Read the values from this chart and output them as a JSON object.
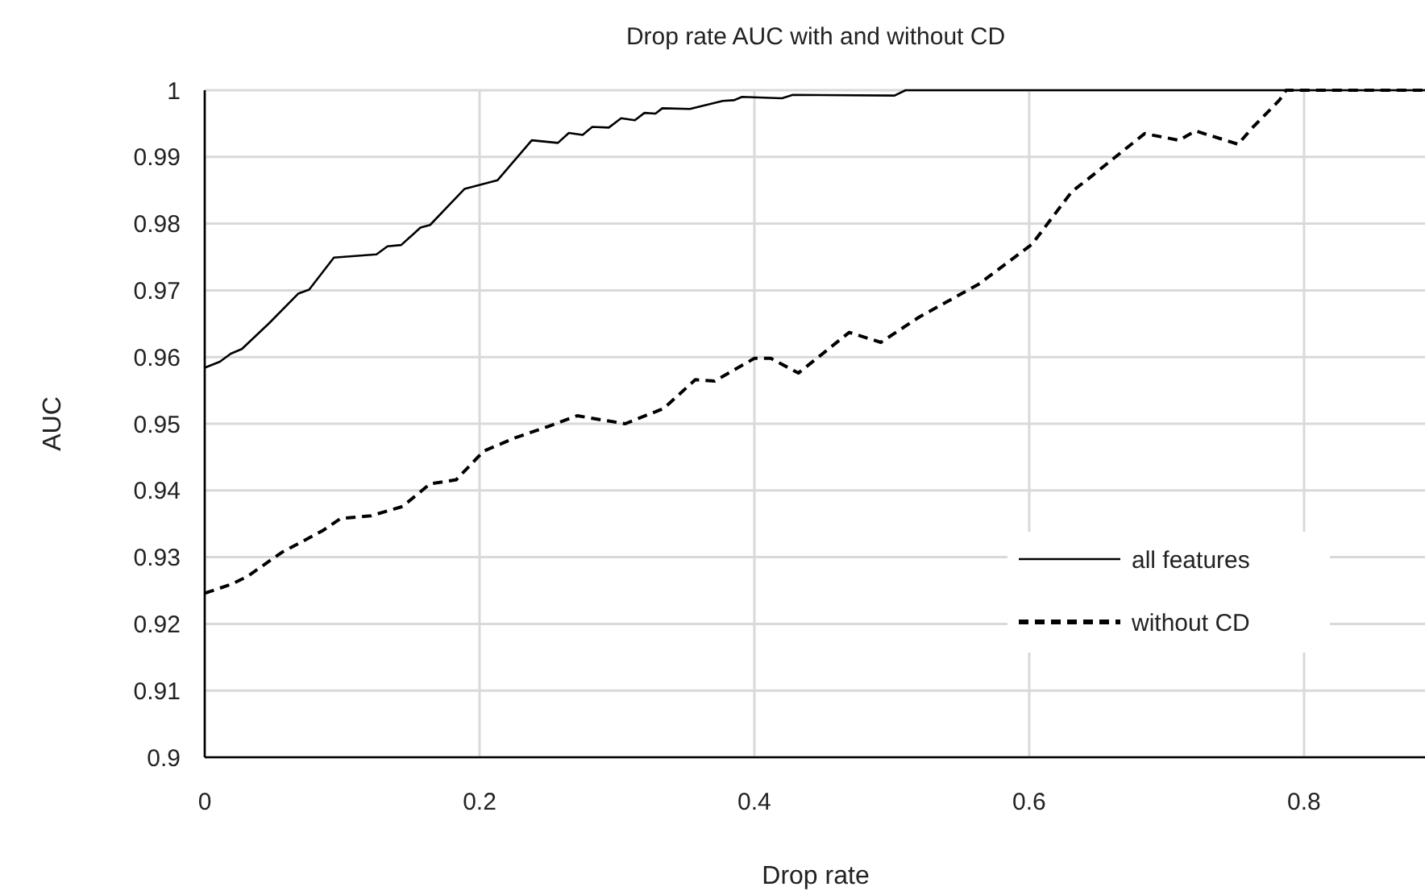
{
  "chart_data": {
    "type": "line",
    "title": "Drop rate AUC with and without CD",
    "xlabel": "Drop rate",
    "ylabel": "AUC",
    "xlim": [
      0,
      0.888
    ],
    "xticks": [
      0,
      0.2,
      0.4,
      0.6,
      0.8
    ],
    "ylim": [
      0.9,
      1
    ],
    "yticks": [
      0.9,
      0.91,
      0.92,
      0.93,
      0.94,
      0.95,
      0.96,
      0.97,
      0.98,
      0.99,
      1
    ],
    "grid": true,
    "legend": "bottom right",
    "series": [
      {
        "name": "all features",
        "color": "#000000",
        "line_style": "solid",
        "x": [
          0,
          0.011,
          0.019,
          0.027,
          0.047,
          0.068,
          0.076,
          0.094,
          0.125,
          0.133,
          0.143,
          0.157,
          0.164,
          0.189,
          0.213,
          0.238,
          0.257,
          0.265,
          0.275,
          0.282,
          0.294,
          0.303,
          0.313,
          0.32,
          0.328,
          0.333,
          0.353,
          0.377,
          0.385,
          0.391,
          0.42,
          0.428,
          0.502,
          0.51,
          0.888
        ],
        "values": [
          0.9584,
          0.9593,
          0.9605,
          0.9612,
          0.9651,
          0.9695,
          0.9701,
          0.9749,
          0.9754,
          0.9766,
          0.9768,
          0.9794,
          0.9798,
          0.9852,
          0.9865,
          0.9925,
          0.9921,
          0.9936,
          0.9933,
          0.9945,
          0.9944,
          0.9958,
          0.9955,
          0.9966,
          0.9965,
          0.9973,
          0.9972,
          0.9984,
          0.9985,
          0.999,
          0.9988,
          0.9993,
          0.9992,
          1,
          1
        ]
      },
      {
        "name": "without CD",
        "color": "#000000",
        "line_style": "dashed",
        "x": [
          0,
          0.019,
          0.031,
          0.056,
          0.086,
          0.099,
          0.121,
          0.144,
          0.164,
          0.183,
          0.203,
          0.226,
          0.25,
          0.271,
          0.306,
          0.334,
          0.357,
          0.371,
          0.4,
          0.412,
          0.432,
          0.469,
          0.492,
          0.52,
          0.563,
          0.602,
          0.631,
          0.641,
          0.684,
          0.709,
          0.721,
          0.752,
          0.762,
          0.782,
          0.787,
          0.888
        ],
        "values": [
          0.9246,
          0.9259,
          0.9271,
          0.9307,
          0.934,
          0.9358,
          0.9362,
          0.9376,
          0.941,
          0.9416,
          0.9459,
          0.9479,
          0.9496,
          0.9512,
          0.95,
          0.9523,
          0.9566,
          0.9564,
          0.9598,
          0.9598,
          0.9576,
          0.9637,
          0.9622,
          0.966,
          0.9709,
          0.9769,
          0.9848,
          0.9864,
          0.9935,
          0.9925,
          0.9939,
          0.9919,
          0.9943,
          0.9985,
          1,
          1
        ]
      }
    ]
  }
}
